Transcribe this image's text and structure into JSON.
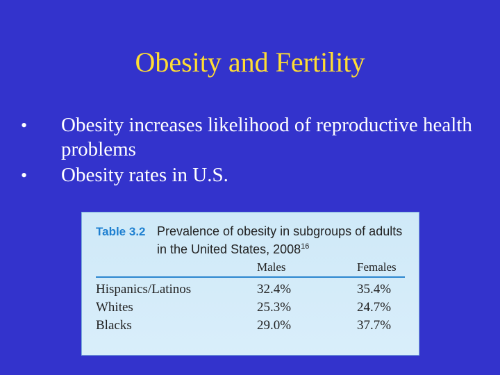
{
  "slide": {
    "title": "Obesity and Fertility",
    "bullets": [
      {
        "marker": "•",
        "text": "Obesity increases likelihood of reproductive health problems"
      },
      {
        "marker": "•",
        "text": "Obesity rates in U.S."
      }
    ]
  },
  "table": {
    "number": "Table 3.2",
    "caption": "Prevalence of obesity in subgroups of adults in the United States, 2008",
    "caption_ref": "16",
    "columns": [
      "Males",
      "Females"
    ],
    "rows": [
      {
        "label": "Hispanics/Latinos",
        "males": "32.4%",
        "females": "35.4%"
      },
      {
        "label": "Whites",
        "males": "25.3%",
        "females": "24.7%"
      },
      {
        "label": "Blacks",
        "males": "29.0%",
        "females": "37.7%"
      }
    ]
  },
  "colors": {
    "background": "#3333cc",
    "title": "#ffdd33",
    "bullet_text": "#ffffff",
    "table_accent": "#1d7fd0",
    "table_background": "#d3ebf9"
  }
}
